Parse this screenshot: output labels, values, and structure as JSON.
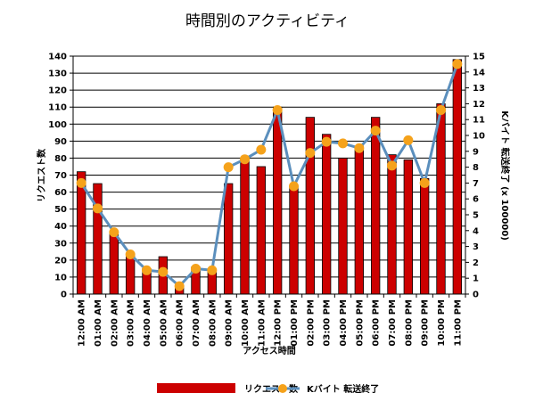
{
  "chart_data": {
    "type": "bar",
    "title": "時間別のアクティビティ",
    "xlabel": "アクセス時間",
    "ylabel": "リクエスト数",
    "y2label": "Kバイト 転送終了 (x 100000)",
    "categories": [
      "12:00 AM",
      "01:00 AM",
      "02:00 AM",
      "03:00 AM",
      "04:00 AM",
      "05:00 AM",
      "06:00 AM",
      "07:00 AM",
      "08:00 AM",
      "09:00 AM",
      "10:00 AM",
      "11:00 AM",
      "12:00 PM",
      "01:00 PM",
      "02:00 PM",
      "03:00 PM",
      "04:00 PM",
      "05:00 PM",
      "06:00 PM",
      "07:00 PM",
      "08:00 PM",
      "09:00 PM",
      "10:00 PM",
      "11:00 PM"
    ],
    "ylim": [
      0,
      140
    ],
    "yticks": [
      0,
      10,
      20,
      30,
      40,
      50,
      60,
      70,
      80,
      90,
      100,
      110,
      120,
      130,
      140
    ],
    "y2lim": [
      0,
      15
    ],
    "y2ticks": [
      0,
      1,
      2,
      3,
      4,
      5,
      6,
      7,
      8,
      9,
      10,
      11,
      12,
      13,
      14,
      15
    ],
    "grid": true,
    "legend_position": "bottom",
    "series": [
      {
        "name": "リクエスト数",
        "type": "bar",
        "axis": "left",
        "color": "#cc0000",
        "values": [
          72,
          65,
          36,
          23,
          15,
          22,
          5,
          16,
          13,
          65,
          80,
          75,
          110,
          63,
          104,
          94,
          80,
          87,
          104,
          82,
          79,
          68,
          112,
          138
        ]
      },
      {
        "name": "Kバイト 転送終了",
        "type": "line",
        "axis": "right",
        "color": "#5b8fbd",
        "marker_color": "#f5a21b",
        "values": [
          7.0,
          5.4,
          3.9,
          2.5,
          1.5,
          1.4,
          0.5,
          1.6,
          1.5,
          8.0,
          8.5,
          9.1,
          11.6,
          6.8,
          8.9,
          9.6,
          9.5,
          9.2,
          10.3,
          8.1,
          9.7,
          7.0,
          11.6,
          14.5
        ]
      }
    ]
  }
}
